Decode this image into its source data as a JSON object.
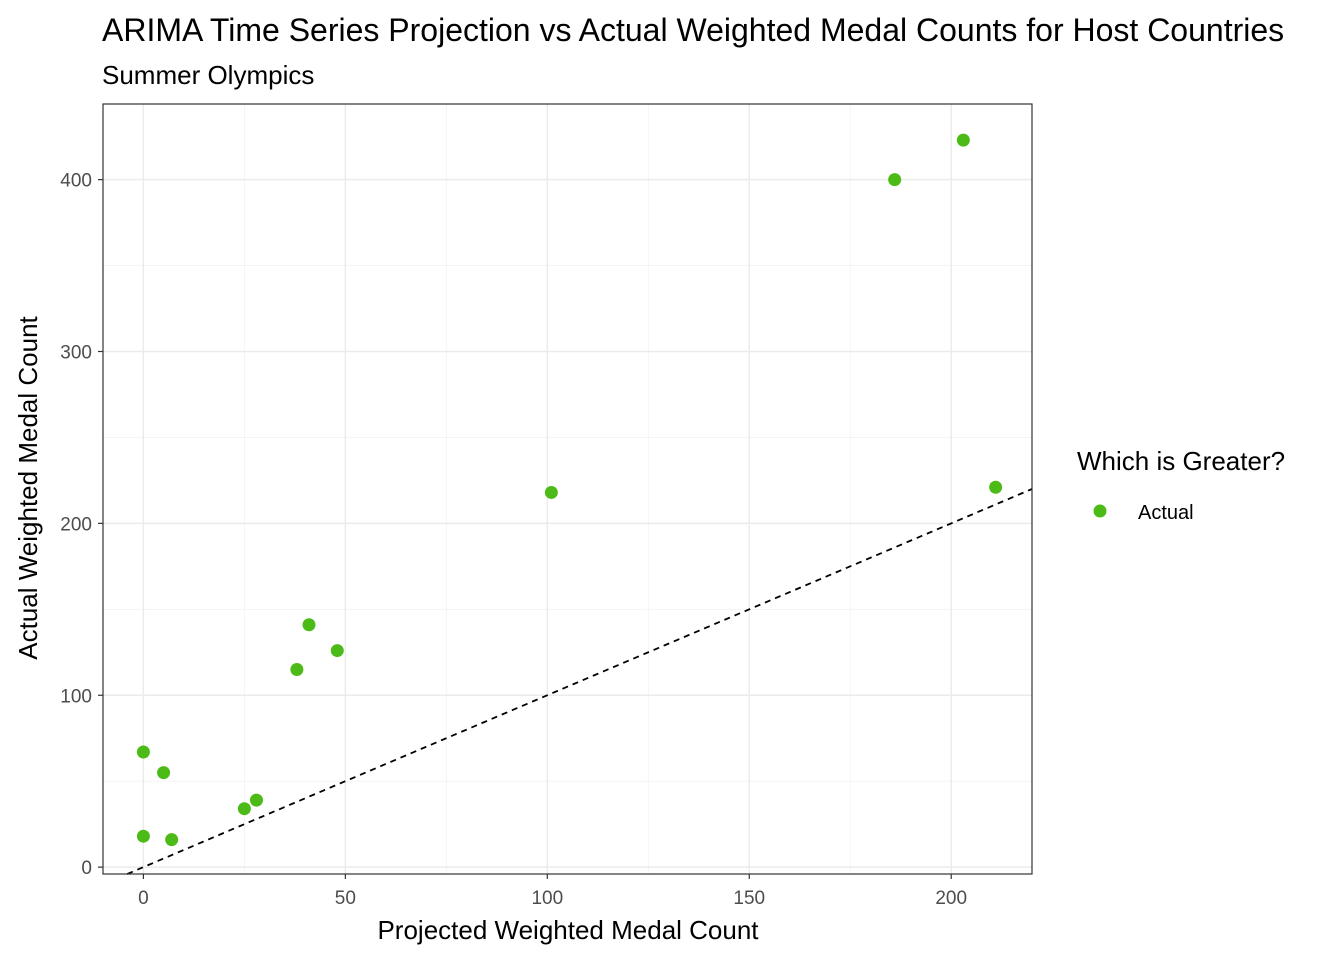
{
  "chart_data": {
    "type": "scatter",
    "title": "ARIMA Time Series Projection vs Actual Weighted Medal Counts for Host Countries",
    "subtitle": "Summer Olympics",
    "xlabel": "Projected Weighted Medal Count",
    "ylabel": "Actual Weighted Medal Count",
    "xlim": [
      -10,
      220
    ],
    "ylim": [
      -4,
      444
    ],
    "x_ticks": [
      0,
      50,
      100,
      150,
      200
    ],
    "x_tick_labels": [
      "0",
      "50",
      "100",
      "150",
      "200"
    ],
    "y_ticks": [
      0,
      100,
      200,
      300,
      400
    ],
    "y_tick_labels": [
      "0",
      "100",
      "200",
      "300",
      "400"
    ],
    "grid": true,
    "legend": {
      "title": "Which is Greater?",
      "position": "right",
      "entries": [
        {
          "label": "Actual",
          "color": "#4cbb17"
        }
      ]
    },
    "reference_line": {
      "style": "dashed",
      "slope": 1,
      "intercept": 0,
      "color": "#000000"
    },
    "series": [
      {
        "name": "Actual",
        "color": "#4cbb17",
        "points": [
          {
            "x": 0,
            "y": 67
          },
          {
            "x": 0,
            "y": 18
          },
          {
            "x": 5,
            "y": 55
          },
          {
            "x": 7,
            "y": 16
          },
          {
            "x": 25,
            "y": 34
          },
          {
            "x": 28,
            "y": 39
          },
          {
            "x": 38,
            "y": 115
          },
          {
            "x": 41,
            "y": 141
          },
          {
            "x": 48,
            "y": 126
          },
          {
            "x": 101,
            "y": 218
          },
          {
            "x": 186,
            "y": 400
          },
          {
            "x": 203,
            "y": 423
          },
          {
            "x": 211,
            "y": 221
          }
        ]
      }
    ]
  }
}
